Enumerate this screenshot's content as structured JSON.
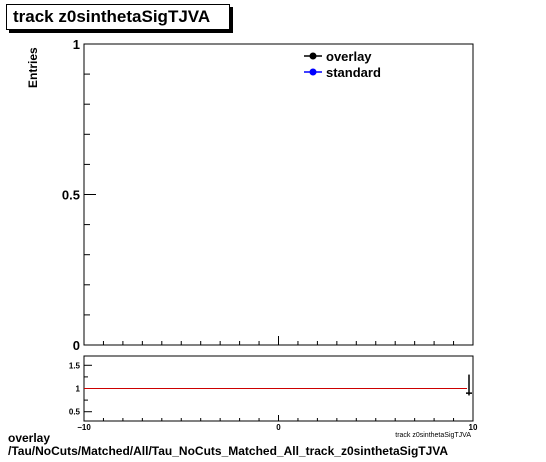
{
  "chart_data": [
    {
      "type": "line",
      "title": "track z0sinthetaSigTJVA",
      "ylabel": "Entries",
      "xlabel": "",
      "xlim": [
        -10,
        10
      ],
      "ylim": [
        0,
        1
      ],
      "yticks": [
        0,
        0.5,
        1
      ],
      "ytick_labels": [
        "0",
        "0.5",
        "1"
      ],
      "grid": false,
      "legend_position": "top-right",
      "series": [
        {
          "name": "overlay",
          "color": "#000000",
          "marker": "circle",
          "x": [],
          "y": []
        },
        {
          "name": "standard",
          "color": "#0000ff",
          "marker": "circle",
          "x": [],
          "y": []
        }
      ]
    },
    {
      "type": "line",
      "xlabel": "track z0sinthetaSigTJVA",
      "xlim": [
        -10,
        10
      ],
      "ylim": [
        0.3,
        1.7
      ],
      "xticks": [
        -10,
        0,
        10
      ],
      "xtick_labels": [
        "−10",
        "0",
        "10"
      ],
      "yticks": [
        0.5,
        1,
        1.5
      ],
      "ytick_labels": [
        "0.5",
        "1",
        "1.5"
      ],
      "reference_line": {
        "y": 1,
        "color": "#cc0000"
      },
      "points": [
        {
          "x": 10,
          "y": 0.9,
          "yerr_low": 0.85,
          "yerr_high": 1.3
        }
      ]
    }
  ],
  "footer": {
    "line1": "overlay",
    "line2": "/Tau/NoCuts/Matched/All/Tau_NoCuts_Matched_All_track_z0sinthetaSigTJVA"
  }
}
